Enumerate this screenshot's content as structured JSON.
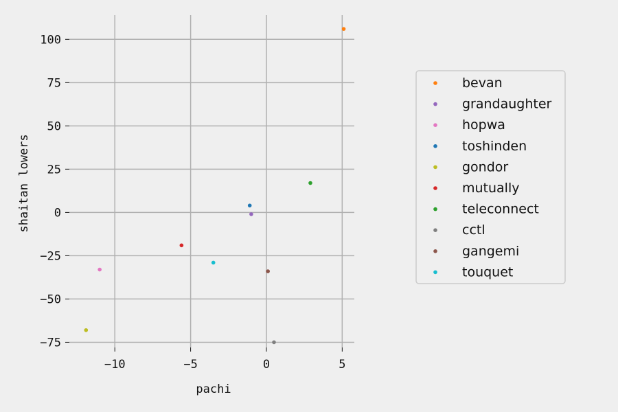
{
  "chart_data": {
    "type": "scatter",
    "title": "",
    "xlabel": "pachi",
    "ylabel": "shaitan lowers",
    "xlim": [
      -13.0,
      5.8
    ],
    "ylim": [
      -78,
      114
    ],
    "xticks": [
      -10,
      -5,
      0,
      5
    ],
    "yticks": [
      -75,
      -50,
      -25,
      0,
      25,
      50,
      75,
      100
    ],
    "xtick_labels": [
      "−10",
      "−5",
      "0",
      "5"
    ],
    "ytick_labels": [
      "−75",
      "−50",
      "−25",
      "0",
      "25",
      "50",
      "75",
      "100"
    ],
    "grid": true,
    "legend_position": "right",
    "series": [
      {
        "name": "bevan",
        "color": "#ff7f0e",
        "x": [
          5.1
        ],
        "y": [
          106
        ]
      },
      {
        "name": "grandaughter",
        "color": "#9467bd",
        "x": [
          -1.0
        ],
        "y": [
          -1
        ]
      },
      {
        "name": "hopwa",
        "color": "#e377c2",
        "x": [
          -11.0
        ],
        "y": [
          -33
        ]
      },
      {
        "name": "toshinden",
        "color": "#1f77b4",
        "x": [
          -1.1
        ],
        "y": [
          4
        ]
      },
      {
        "name": "gondor",
        "color": "#bcbd22",
        "x": [
          -11.9
        ],
        "y": [
          -68
        ]
      },
      {
        "name": "mutually",
        "color": "#d62728",
        "x": [
          -5.6
        ],
        "y": [
          -19
        ]
      },
      {
        "name": "teleconnect",
        "color": "#2ca02c",
        "x": [
          2.9
        ],
        "y": [
          17
        ]
      },
      {
        "name": "cctl",
        "color": "#7f7f7f",
        "x": [
          0.5
        ],
        "y": [
          -75
        ]
      },
      {
        "name": "gangemi",
        "color": "#8c564b",
        "x": [
          0.1
        ],
        "y": [
          -34
        ]
      },
      {
        "name": "touquet",
        "color": "#17becf",
        "x": [
          -3.5
        ],
        "y": [
          -29
        ]
      }
    ]
  }
}
